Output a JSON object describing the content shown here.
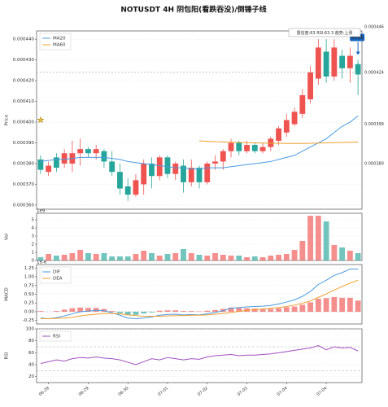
{
  "chart_data": [
    {
      "type": "candlestick",
      "title": "NOTUSDT  4H  阴包阳(看跌吞没)/倒锤子线",
      "ylabel": "Price",
      "up_color": "#ef5350",
      "down_color": "#26a69a",
      "open": [
        0.000382,
        0.000376,
        0.000383,
        0.00038,
        0.00038,
        0.000385,
        0.000387,
        0.000385,
        0.000386,
        0.000381,
        0.000376,
        0.000369,
        0.000365,
        0.00037,
        0.00038,
        0.000374,
        0.000383,
        0.000375,
        0.000379,
        0.000371,
        0.000378,
        0.000371,
        0.00038,
        0.000381,
        0.000386,
        0.00039,
        0.000386,
        0.000389,
        0.000386,
        0.000388,
        0.000391,
        0.000395,
        0.000399,
        0.000404,
        0.000411,
        0.000421,
        0.000434,
        0.000422,
        0.000432,
        0.000426,
        0.000428
      ],
      "high": [
        0.000384,
        0.000381,
        0.000385,
        0.000387,
        0.000391,
        0.000392,
        0.000388,
        0.000389,
        0.000387,
        0.000386,
        0.00038,
        0.000373,
        0.000375,
        0.000382,
        0.000383,
        0.000384,
        0.000384,
        0.000381,
        0.000382,
        0.000382,
        0.000379,
        0.000381,
        0.000384,
        0.000387,
        0.000392,
        0.000391,
        0.000391,
        0.00039,
        0.00039,
        0.000393,
        0.000398,
        0.000404,
        0.000407,
        0.000416,
        0.000427,
        0.00044,
        0.00044,
        0.00044,
        0.000435,
        0.000436,
        0.00043
      ],
      "low": [
        0.000375,
        0.000374,
        0.000376,
        0.000378,
        0.000376,
        0.000379,
        0.000383,
        0.000382,
        0.000378,
        0.000374,
        0.000365,
        0.000362,
        0.000364,
        0.000365,
        0.000368,
        0.000372,
        0.000373,
        0.000372,
        0.000366,
        0.000369,
        0.000368,
        0.00037,
        0.000377,
        0.000377,
        0.000383,
        0.000384,
        0.000385,
        0.000385,
        0.000385,
        0.000386,
        0.000389,
        0.000393,
        0.000398,
        0.000402,
        0.000409,
        0.000418,
        0.000419,
        0.00042,
        0.000421,
        0.000419,
        0.000413
      ],
      "close": [
        0.000377,
        0.000379,
        0.000378,
        0.000385,
        0.000385,
        0.000387,
        0.000385,
        0.000387,
        0.000381,
        0.000376,
        0.000368,
        0.000365,
        0.000372,
        0.00038,
        0.000374,
        0.000383,
        0.000375,
        0.00038,
        0.000371,
        0.000378,
        0.000371,
        0.00038,
        0.000381,
        0.000386,
        0.00039,
        0.000386,
        0.000389,
        0.000386,
        0.000388,
        0.000392,
        0.000397,
        0.000401,
        0.000405,
        0.000413,
        0.000424,
        0.000436,
        0.000422,
        0.000436,
        0.000426,
        0.000432,
        0.000423
      ],
      "series": [
        {
          "name": "MA20",
          "color": "#4a9be0",
          "values": [
            0.000381,
            0.0003815,
            0.000382,
            0.000382,
            0.0003825,
            0.000383,
            0.000383,
            0.000383,
            0.000383,
            0.0003825,
            0.000382,
            0.000381,
            0.0003805,
            0.00038,
            0.0003795,
            0.000379,
            0.0003785,
            0.000378,
            0.000378,
            0.0003775,
            0.0003775,
            0.000378,
            0.000378,
            0.000378,
            0.0003785,
            0.000379,
            0.0003795,
            0.00038,
            0.0003805,
            0.000381,
            0.000382,
            0.000383,
            0.000384,
            0.000386,
            0.000388,
            0.00039,
            0.000392,
            0.000395,
            0.000398,
            0.0004,
            0.000403
          ]
        },
        {
          "name": "MA60",
          "color": "#f0a030",
          "values": [
            null,
            null,
            null,
            null,
            null,
            null,
            null,
            null,
            null,
            null,
            null,
            null,
            null,
            null,
            null,
            null,
            null,
            null,
            null,
            null,
            0.000391,
            0.0003908,
            0.0003906,
            0.0003905,
            0.0003903,
            0.0003902,
            0.0003901,
            0.00039,
            0.0003899,
            0.0003898,
            0.0003898,
            0.0003897,
            0.0003897,
            0.0003897,
            0.0003898,
            0.0003899,
            0.00039,
            0.0003901,
            0.0003902,
            0.0003903,
            0.0003904
          ]
        }
      ],
      "ylim": [
        0.000358,
        0.000444
      ],
      "yticks": [
        {
          "value": 0.00036,
          "label": "0.000360"
        },
        {
          "value": 0.00037,
          "label": "0.000370"
        },
        {
          "value": 0.00038,
          "label": "0.000380"
        },
        {
          "value": 0.00039,
          "label": "0.000390"
        },
        {
          "value": 0.0004,
          "label": "0.000400"
        },
        {
          "value": 0.00041,
          "label": "0.000410"
        },
        {
          "value": 0.00042,
          "label": "0.000420"
        },
        {
          "value": 0.00043,
          "label": "0.000430"
        },
        {
          "value": 0.00044,
          "label": "0.000440"
        }
      ],
      "levels": [
        {
          "value": 0.000446,
          "label": "0.000446",
          "color": "#26a69a"
        },
        {
          "value": 0.000424,
          "label": "0.000424",
          "color": "#888888",
          "dashed": true
        },
        {
          "value": 0.000399,
          "label": "0.000399",
          "color": "#ef5350"
        },
        {
          "value": 0.00038,
          "label": "0.000380",
          "color": "#ef5350"
        }
      ],
      "info": "置信度:63  RSI:63.3  趋势:上涨",
      "signal": {
        "label": "SELL",
        "index": 40,
        "value": 0.000434
      },
      "marker": {
        "index": 0,
        "value": 0.000401
      },
      "grid": true
    },
    {
      "type": "bar",
      "ylabel": "Vol",
      "offset_label": "1e9",
      "values": [
        0.4,
        0.8,
        0.6,
        0.7,
        0.9,
        1.3,
        0.9,
        0.8,
        0.9,
        0.5,
        0.5,
        0.5,
        0.8,
        1.2,
        0.9,
        0.6,
        0.8,
        0.9,
        1.4,
        0.9,
        0.7,
        0.6,
        0.9,
        0.7,
        0.6,
        0.6,
        0.4,
        0.5,
        0.4,
        0.6,
        0.7,
        0.8,
        1.3,
        2.4,
        5.5,
        5.5,
        4.8,
        1.9,
        1.6,
        1.2,
        0.9
      ],
      "ylim": [
        0,
        5.8
      ],
      "yticks": [
        0,
        1,
        2,
        3,
        4,
        5
      ],
      "grid": true
    },
    {
      "type": "macd",
      "ylabel": "MACD",
      "offset_label": "1e-6",
      "series": [
        {
          "name": "DIF",
          "color": "#4a9be0",
          "values": [
            -0.18,
            -0.2,
            -0.17,
            -0.12,
            -0.06,
            0.0,
            0.02,
            0.04,
            0.03,
            -0.03,
            -0.1,
            -0.18,
            -0.2,
            -0.18,
            -0.15,
            -0.1,
            -0.08,
            -0.07,
            -0.09,
            -0.08,
            -0.09,
            -0.06,
            -0.02,
            0.03,
            0.1,
            0.12,
            0.14,
            0.15,
            0.16,
            0.18,
            0.22,
            0.28,
            0.34,
            0.44,
            0.58,
            0.78,
            0.9,
            1.04,
            1.12,
            1.22,
            1.22
          ]
        },
        {
          "name": "DEA",
          "color": "#f0a030",
          "values": [
            -0.2,
            -0.2,
            -0.19,
            -0.18,
            -0.16,
            -0.12,
            -0.09,
            -0.07,
            -0.05,
            -0.05,
            -0.06,
            -0.09,
            -0.11,
            -0.13,
            -0.13,
            -0.13,
            -0.12,
            -0.11,
            -0.11,
            -0.1,
            -0.1,
            -0.09,
            -0.07,
            -0.05,
            -0.02,
            0.01,
            0.04,
            0.06,
            0.08,
            0.1,
            0.12,
            0.15,
            0.19,
            0.24,
            0.31,
            0.41,
            0.51,
            0.62,
            0.72,
            0.82,
            0.9
          ]
        }
      ],
      "histogram": [
        0.02,
        0,
        0.02,
        0.06,
        0.1,
        0.12,
        0.11,
        0.11,
        0.08,
        0.02,
        -0.04,
        -0.09,
        -0.09,
        -0.05,
        -0.02,
        0.03,
        0.04,
        0.04,
        0.02,
        0.02,
        0.01,
        0.03,
        0.05,
        0.08,
        0.12,
        0.11,
        0.1,
        0.09,
        0.08,
        0.08,
        0.1,
        0.13,
        0.15,
        0.2,
        0.27,
        0.37,
        0.39,
        0.42,
        0.4,
        0.4,
        0.32
      ],
      "ylim": [
        -0.35,
        1.35
      ],
      "yticks": [
        -0.25,
        {
          "value": 0,
          "label": "0.00"
        },
        0.25,
        {
          "value": 0.5,
          "label": "0.50"
        },
        0.75,
        {
          "value": 1,
          "label": "1.00"
        },
        1.25
      ],
      "grid": true
    },
    {
      "type": "line",
      "ylabel": "RSI",
      "series": [
        {
          "name": "RSI",
          "color": "#a050c0",
          "values": [
            42,
            45,
            48,
            46,
            50,
            52,
            51,
            53,
            51,
            50,
            48,
            44,
            40,
            45,
            50,
            48,
            52,
            50,
            48,
            50,
            49,
            53,
            55,
            56,
            57,
            55,
            56,
            56,
            57,
            58,
            60,
            62,
            64,
            66,
            68,
            72,
            65,
            70,
            68,
            69,
            63
          ]
        }
      ],
      "ref_lines": [
        70,
        30
      ],
      "categories": [
        null,
        "06-29",
        null,
        null,
        null,
        null,
        "06-29",
        null,
        null,
        null,
        null,
        "06-30",
        null,
        null,
        null,
        null,
        "07-01",
        null,
        null,
        null,
        null,
        "07-02",
        null,
        null,
        null,
        null,
        "07-03",
        null,
        null,
        null,
        null,
        "07-04",
        null,
        null,
        null,
        null,
        "07-04",
        null,
        null,
        null,
        null
      ],
      "ylim": [
        10,
        100
      ],
      "yticks": [
        20,
        40,
        60,
        80,
        100
      ],
      "grid": true
    }
  ]
}
